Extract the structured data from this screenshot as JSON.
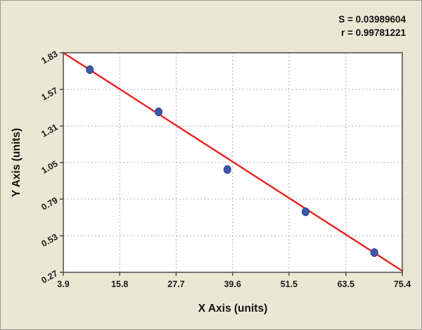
{
  "stats": {
    "s": "S = 0.03989604",
    "r": "r = 0.99781221"
  },
  "chart_data": {
    "type": "scatter",
    "title": "",
    "xlabel": "X Axis (units)",
    "ylabel": "Y Axis (units)",
    "xlim": [
      3.9,
      75.4
    ],
    "ylim": [
      0.27,
      1.83
    ],
    "x_ticks": [
      3.9,
      15.8,
      27.7,
      39.6,
      51.5,
      63.5,
      75.4
    ],
    "y_ticks": [
      0.27,
      0.53,
      0.79,
      1.05,
      1.31,
      1.57,
      1.83
    ],
    "grid": true,
    "legend": "none",
    "points": [
      {
        "x": 9.5,
        "y": 1.71
      },
      {
        "x": 24.0,
        "y": 1.41
      },
      {
        "x": 38.5,
        "y": 1.0
      },
      {
        "x": 55.0,
        "y": 0.7
      },
      {
        "x": 69.5,
        "y": 0.41
      }
    ],
    "fit_line": {
      "x1": 3.9,
      "y1": 1.83,
      "x2": 75.4,
      "y2": 0.28
    },
    "annotations": [
      "S = 0.03989604",
      "r = 0.99781221"
    ],
    "colors": {
      "background": "#ece7d4",
      "plot_bg": "#ffffff",
      "grid": "#9fb4c8",
      "line": "#e8231f",
      "point": "#3d57a9",
      "point_edge": "#2c3f8c",
      "frame": "#4a4a4a",
      "text": "#101010"
    }
  }
}
